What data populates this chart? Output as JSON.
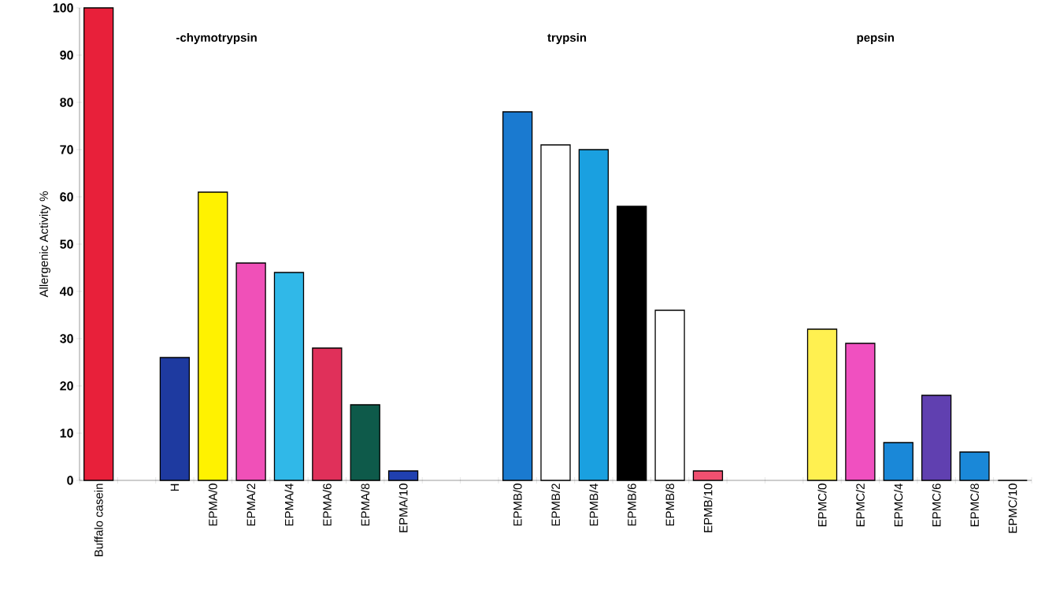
{
  "chart_data": {
    "type": "bar",
    "ylabel": "Allergenic Activity %",
    "categories": [
      "Buffalo casein",
      null,
      "H",
      "EPMA/0",
      "EPMA/2",
      "EPMA/4",
      "EPMA/6",
      "EPMA/8",
      "EPMA/10",
      null,
      null,
      "EPMB/0",
      "EPMB/2",
      "EPMB/4",
      "EPMB/6",
      "EPMB/8",
      "EPMB/10",
      null,
      null,
      "EPMC/0",
      "EPMC/2",
      "EPMC/4",
      "EPMC/6",
      "EPMC/8",
      "EPMC/10"
    ],
    "values": [
      100,
      null,
      26,
      61,
      46,
      44,
      28,
      16,
      2,
      null,
      null,
      78,
      71,
      70,
      58,
      36,
      2,
      null,
      null,
      32,
      29,
      8,
      18,
      6,
      0
    ],
    "colors": [
      "#e8203a",
      null,
      "#1e3aa0",
      "#fff200",
      "#f050b8",
      "#30b8e8",
      "#e0305a",
      "#0e5a4a",
      "#2040b0",
      null,
      null,
      "#1a7ad0",
      "#ffffff",
      "#1aa0e0",
      "#000000",
      "#ffffff",
      "#f05070",
      null,
      null,
      "#fff050",
      "#f050c0",
      "#1a88d8",
      "#6040b0",
      "#1a88d8",
      "#1a88d8"
    ],
    "ylim": [
      0,
      100
    ],
    "yticks": [
      0,
      10,
      20,
      30,
      40,
      50,
      60,
      70,
      80,
      90,
      100
    ],
    "grid": false,
    "annotations": [
      "-chymotrypsin",
      "trypsin",
      "pepsin"
    ]
  }
}
